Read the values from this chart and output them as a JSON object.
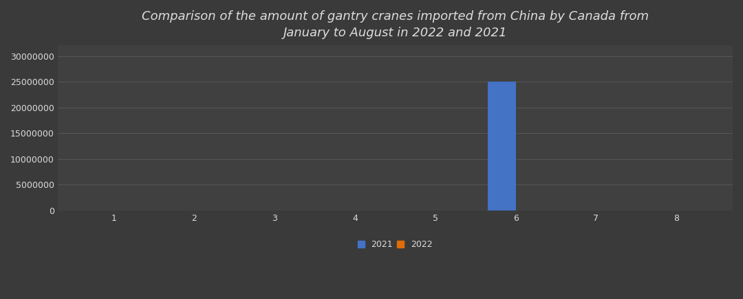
{
  "title_line1": "Comparison of the amount of gantry cranes imported from China by Canada from",
  "title_line2": "January to August in 2022 and 2021",
  "months": [
    1,
    2,
    3,
    4,
    5,
    6,
    7,
    8
  ],
  "values_2021": [
    0,
    0,
    0,
    0,
    0,
    25000000,
    0,
    0
  ],
  "values_2022": [
    0,
    0,
    0,
    50000,
    50000,
    50000,
    0,
    0
  ],
  "color_2021": "#4472C4",
  "color_2022": "#E36C09",
  "background_color_top": "#2E2E2E",
  "background_color_bottom": "#454545",
  "axes_background_color": "#404040",
  "text_color": "#DDDDDD",
  "grid_color": "#606060",
  "ylim": [
    0,
    32000000
  ],
  "yticks": [
    0,
    5000000,
    10000000,
    15000000,
    20000000,
    25000000,
    30000000
  ],
  "ytick_labels": [
    "0",
    "5000000",
    "10000000",
    "15000000",
    "20000000",
    "25000000",
    "30000000"
  ],
  "bar_width": 0.35,
  "legend_labels": [
    "2021",
    "2022"
  ],
  "title_fontsize": 13,
  "tick_fontsize": 9
}
